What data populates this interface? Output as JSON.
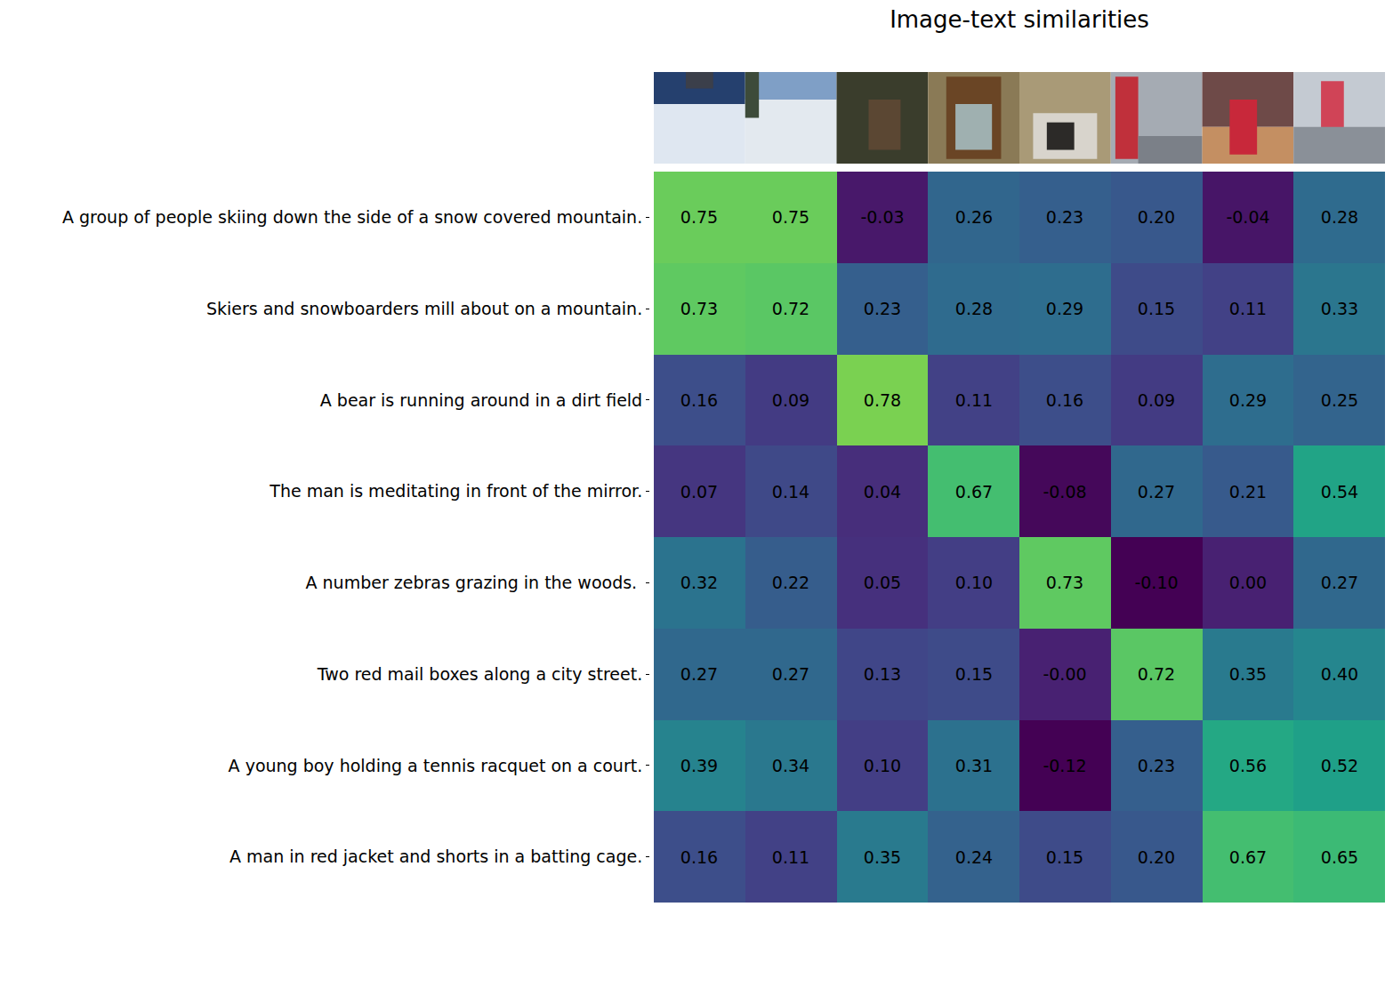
{
  "chart_data": {
    "type": "heatmap",
    "title": "Image-text similarities",
    "rows": [
      "A group of people skiing down the side of a snow covered mountain.",
      "Skiers and snowboarders mill about on a mountain.",
      "A bear is running around in a dirt field",
      "The man is meditating in front of the mirror.",
      "A number zebras grazing in the woods. ",
      "Two red mail boxes along a city street.",
      "A young boy holding a tennis racquet on a court.",
      "A man in red jacket and shorts in a batting cage."
    ],
    "values": [
      [
        0.75,
        0.75,
        -0.03,
        0.26,
        0.23,
        0.2,
        -0.04,
        0.28
      ],
      [
        0.73,
        0.72,
        0.23,
        0.28,
        0.29,
        0.15,
        0.11,
        0.33
      ],
      [
        0.16,
        0.09,
        0.78,
        0.11,
        0.16,
        0.09,
        0.29,
        0.25
      ],
      [
        0.07,
        0.14,
        0.04,
        0.67,
        -0.08,
        0.27,
        0.21,
        0.54
      ],
      [
        0.32,
        0.22,
        0.05,
        0.1,
        0.73,
        -0.1,
        0.0,
        0.27
      ],
      [
        0.27,
        0.27,
        0.13,
        0.15,
        -0.0,
        0.72,
        0.35,
        0.4
      ],
      [
        0.39,
        0.34,
        0.1,
        0.31,
        -0.12,
        0.23,
        0.56,
        0.52
      ],
      [
        0.16,
        0.11,
        0.35,
        0.24,
        0.15,
        0.2,
        0.67,
        0.65
      ]
    ],
    "value_labels": [
      [
        "0.75",
        "0.75",
        "-0.03",
        "0.26",
        "0.23",
        "0.20",
        "-0.04",
        "0.28"
      ],
      [
        "0.73",
        "0.72",
        "0.23",
        "0.28",
        "0.29",
        "0.15",
        "0.11",
        "0.33"
      ],
      [
        "0.16",
        "0.09",
        "0.78",
        "0.11",
        "0.16",
        "0.09",
        "0.29",
        "0.25"
      ],
      [
        "0.07",
        "0.14",
        "0.04",
        "0.67",
        "-0.08",
        "0.27",
        "0.21",
        "0.54"
      ],
      [
        "0.32",
        "0.22",
        "0.05",
        "0.10",
        "0.73",
        "-0.10",
        "0.00",
        "0.27"
      ],
      [
        "0.27",
        "0.27",
        "0.13",
        "0.15",
        "-0.00",
        "0.72",
        "0.35",
        "0.40"
      ],
      [
        "0.39",
        "0.34",
        "0.10",
        "0.31",
        "-0.12",
        "0.23",
        "0.56",
        "0.52"
      ],
      [
        "0.16",
        "0.11",
        "0.35",
        "0.24",
        "0.15",
        "0.20",
        "0.67",
        "0.65"
      ]
    ],
    "zlim": [
      -0.1,
      1.0
    ],
    "data_labels": true,
    "tick_labels": "y",
    "grid": false
  }
}
